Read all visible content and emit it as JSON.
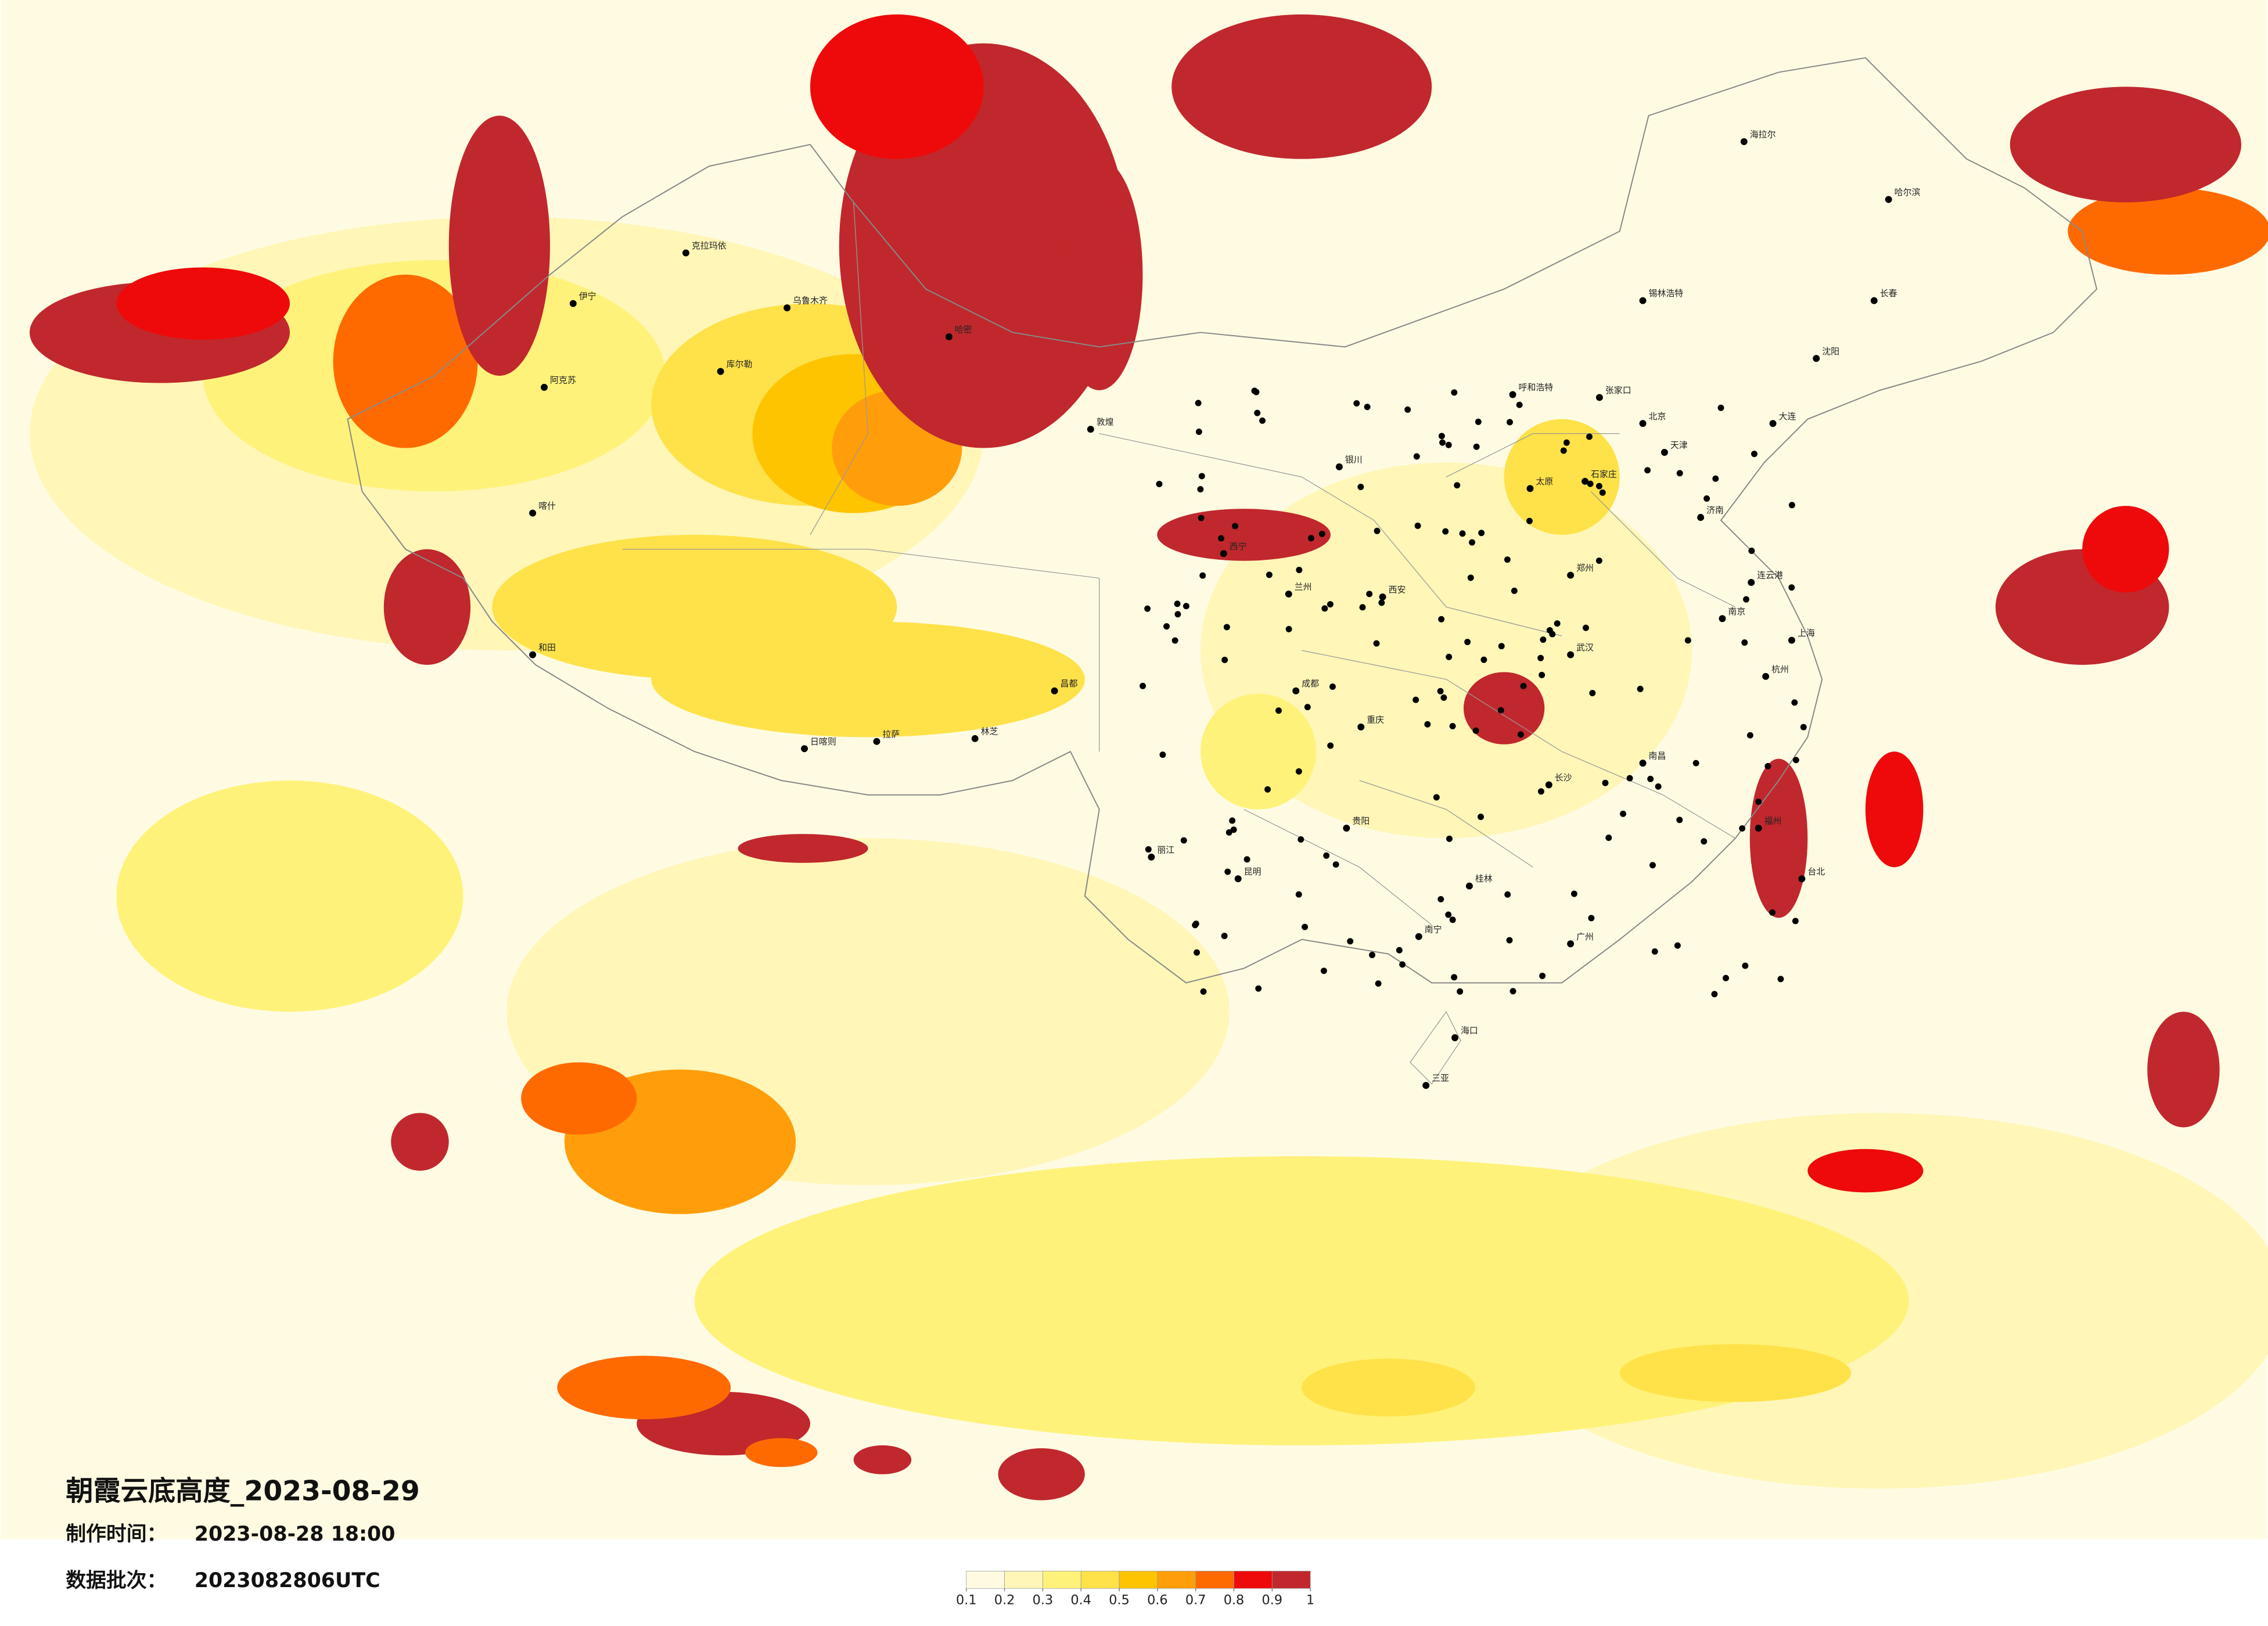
{
  "title": "朝霞云底高度_2023-08-29",
  "made_label": "制作时间：",
  "made_time": "2023-08-28 18:00",
  "batch_label": "数据批次：",
  "batch": "2023082806UTC",
  "colorbar": {
    "colors": [
      "#fffbe3",
      "#fff6b8",
      "#fff27a",
      "#ffe24a",
      "#ffc400",
      "#ff9e0a",
      "#ff6a00",
      "#ee0a0a",
      "#c0282d"
    ],
    "ticks": [
      0.1,
      0.2,
      0.3,
      0.4,
      0.5,
      0.6,
      0.7,
      0.8,
      0.9,
      1
    ]
  },
  "cities": [
    "克拉玛依",
    "伊宁",
    "阿克苏",
    "库尔勒",
    "乌鲁木齐",
    "哈密",
    "喀什",
    "和田",
    "敦煌",
    "拉萨",
    "日喀则",
    "林芝",
    "昌都",
    "西宁",
    "兰州",
    "银川",
    "呼和浩特",
    "北京",
    "天津",
    "石家庄",
    "太原",
    "济南",
    "郑州",
    "西安",
    "成都",
    "重庆",
    "武汉",
    "南京",
    "上海",
    "杭州",
    "长沙",
    "南昌",
    "福州",
    "广州",
    "南宁",
    "昆明",
    "贵阳",
    "海口",
    "三亚",
    "哈尔滨",
    "长春",
    "沈阳",
    "台北",
    "大连",
    "海拉尔",
    "锡林浩特",
    "张家口",
    "丽江",
    "桂林",
    "连云港"
  ]
}
